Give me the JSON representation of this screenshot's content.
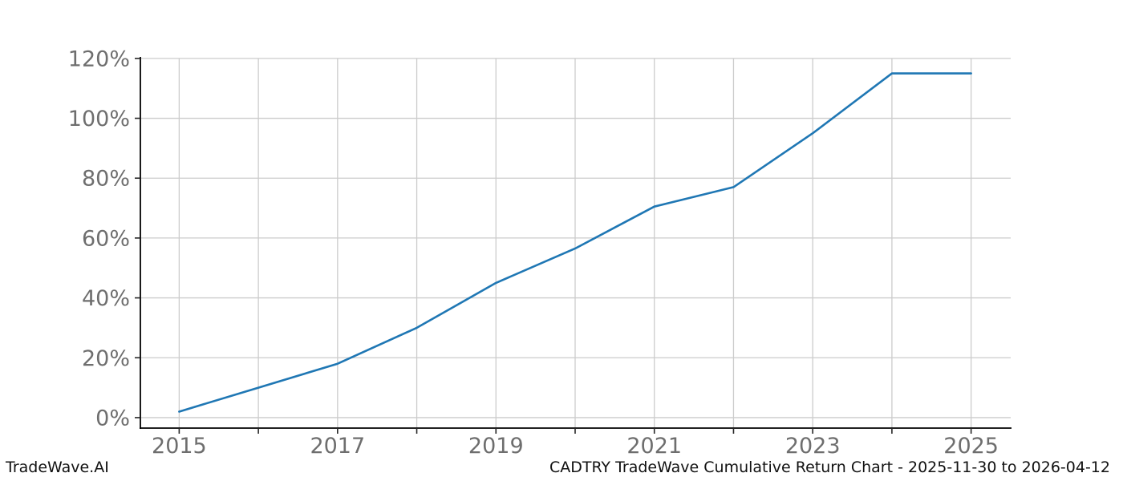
{
  "footer": {
    "brand": "TradeWave.AI",
    "title": "CADTRY TradeWave Cumulative Return Chart - 2025-11-30 to 2026-04-12"
  },
  "chart_data": {
    "type": "line",
    "title": "CADTRY TradeWave Cumulative Return Chart - 2025-11-30 to 2026-04-12",
    "series": [
      {
        "name": "CADTRY cumulative return",
        "x": [
          2015,
          2016,
          2017,
          2018,
          2019,
          2020,
          2021,
          2022,
          2023,
          2024,
          2025
        ],
        "values": [
          2,
          10,
          18,
          30,
          45,
          56.5,
          70.5,
          77,
          95,
          115,
          115
        ]
      }
    ],
    "xlabel": "",
    "ylabel": "",
    "xlim": [
      2014.51,
      2025.5
    ],
    "ylim": [
      -3.5,
      120.5
    ],
    "yticks": [
      0,
      20,
      40,
      60,
      80,
      100,
      120
    ],
    "ytick_suffix": "%",
    "xticks_all": [
      2015,
      2016,
      2017,
      2018,
      2019,
      2020,
      2021,
      2022,
      2023,
      2024,
      2025
    ],
    "xticks_labeled": [
      2015,
      2017,
      2019,
      2021,
      2023,
      2025
    ],
    "grid": true,
    "legend": "none",
    "colors": {
      "line": "#1f77b4",
      "grid": "#cccccc",
      "spine": "#000000",
      "tick": "#262626",
      "tick_label": "#6e6e6e"
    }
  }
}
